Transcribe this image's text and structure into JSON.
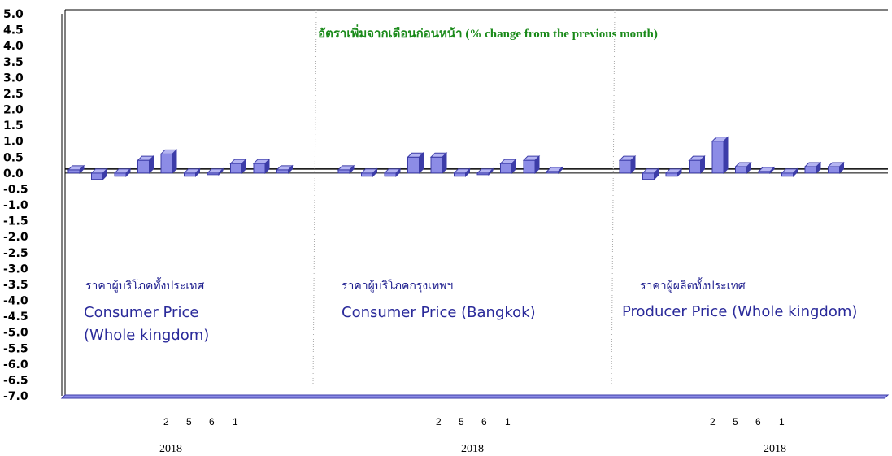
{
  "chart_data": {
    "type": "bar",
    "title": "อัตราเพิ่มจากเดือนก่อนหน้า (% change from the previous month)",
    "ylim": [
      -7.0,
      5.0
    ],
    "yticks": [
      "5.0",
      "4.5",
      "4.0",
      "3.5",
      "3.0",
      "2.5",
      "2.0",
      "1.5",
      "1.0",
      "0.5",
      "0.0",
      "-0.5",
      "-1.0",
      "-1.5",
      "-2.0",
      "-2.5",
      "-3.0",
      "-3.5",
      "-4.0",
      "-4.5",
      "-5.0",
      "-5.5",
      "-6.0",
      "-6.5",
      "-7.0"
    ],
    "colors": {
      "bar_face": "#8c8ce6",
      "bar_dark": "#3c3ca8",
      "title": "#1a8a1a",
      "label": "#2a2a9a"
    },
    "groups": [
      {
        "thai_label": "ราคาผู้บริโภคทั้งประเทศ",
        "english_label_lines": [
          "Consumer Price",
          " (Whole kingdom)"
        ],
        "month_labels": [
          "2",
          "5",
          "6",
          "1"
        ],
        "year_label": "2018",
        "values": [
          0.1,
          -0.2,
          -0.1,
          0.4,
          0.6,
          -0.1,
          -0.05,
          0.3,
          0.3,
          0.1
        ]
      },
      {
        "thai_label": "ราคาผู้บริโภคกรุงเทพฯ",
        "english_label_lines": [
          "Consumer Price (Bangkok)"
        ],
        "month_labels": [
          "2",
          "5",
          "6",
          "1"
        ],
        "year_label": "2018",
        "values": [
          0.1,
          -0.1,
          -0.1,
          0.5,
          0.5,
          -0.1,
          -0.05,
          0.3,
          0.4,
          0.05
        ]
      },
      {
        "thai_label": "ราคาผู้ผลิตทั้งประเทศ",
        "english_label_lines": [
          "Producer Price (Whole kingdom)"
        ],
        "month_labels": [
          "2",
          "5",
          "6",
          "1"
        ],
        "year_label": "2018",
        "values": [
          0.4,
          -0.2,
          -0.1,
          0.4,
          1.0,
          0.2,
          0.05,
          -0.1,
          0.2,
          0.2
        ]
      }
    ]
  }
}
